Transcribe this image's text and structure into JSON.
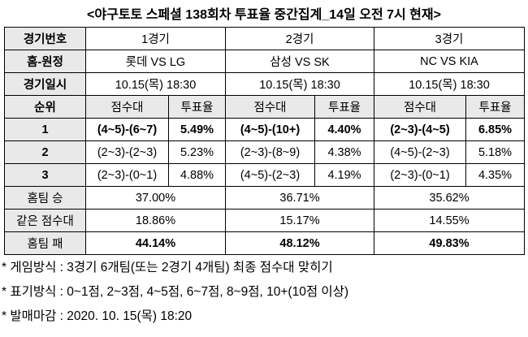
{
  "title": "<야구토토 스페셜 138회차 투표율 중간집계_14일 오전 7시 현재>",
  "table": {
    "rows": [
      [
        "경기번호",
        "1경기",
        "2경기",
        "3경기"
      ],
      [
        "홈-원정",
        "롯데 VS LG",
        "삼성 VS SK",
        "NC VS KIA"
      ],
      [
        "경기일시",
        "10.15(목) 18:30",
        "10.15(목) 18:30",
        "10.15(목) 18:30"
      ],
      [
        "순위",
        "점수대",
        "투표율",
        "점수대",
        "투표율",
        "점수대",
        "투표율"
      ],
      [
        "1",
        "(4~5)-(6~7)",
        "5.49%",
        "(4~5)-(10+)",
        "4.40%",
        "(2~3)-(4~5)",
        "6.85%"
      ],
      [
        "2",
        "(2~3)-(2~3)",
        "5.23%",
        "(2~3)-(8~9)",
        "4.38%",
        "(4~5)-(2~3)",
        "5.18%"
      ],
      [
        "3",
        "(2~3)-(0~1)",
        "4.88%",
        "(4~5)-(2~3)",
        "4.19%",
        "(2~3)-(0~1)",
        "4.35%"
      ],
      [
        "홈팀 승",
        "37.00%",
        "36.71%",
        "35.62%"
      ],
      [
        "같은 점수대",
        "18.86%",
        "15.17%",
        "14.55%"
      ],
      [
        "홈팀 패",
        "44.14%",
        "48.12%",
        "49.83%"
      ]
    ]
  },
  "notes": [
    "*  게임방식 : 3경기 6개팀(또는 2경기 4개팀) 최종 점수대 맞히기",
    "*  표기방식 : 0~1점, 2~3점, 4~5점, 6~7점, 8~9점, 10+(10점 이상)",
    "*  발매마감 : 2020. 10. 15(목) 18:20"
  ]
}
